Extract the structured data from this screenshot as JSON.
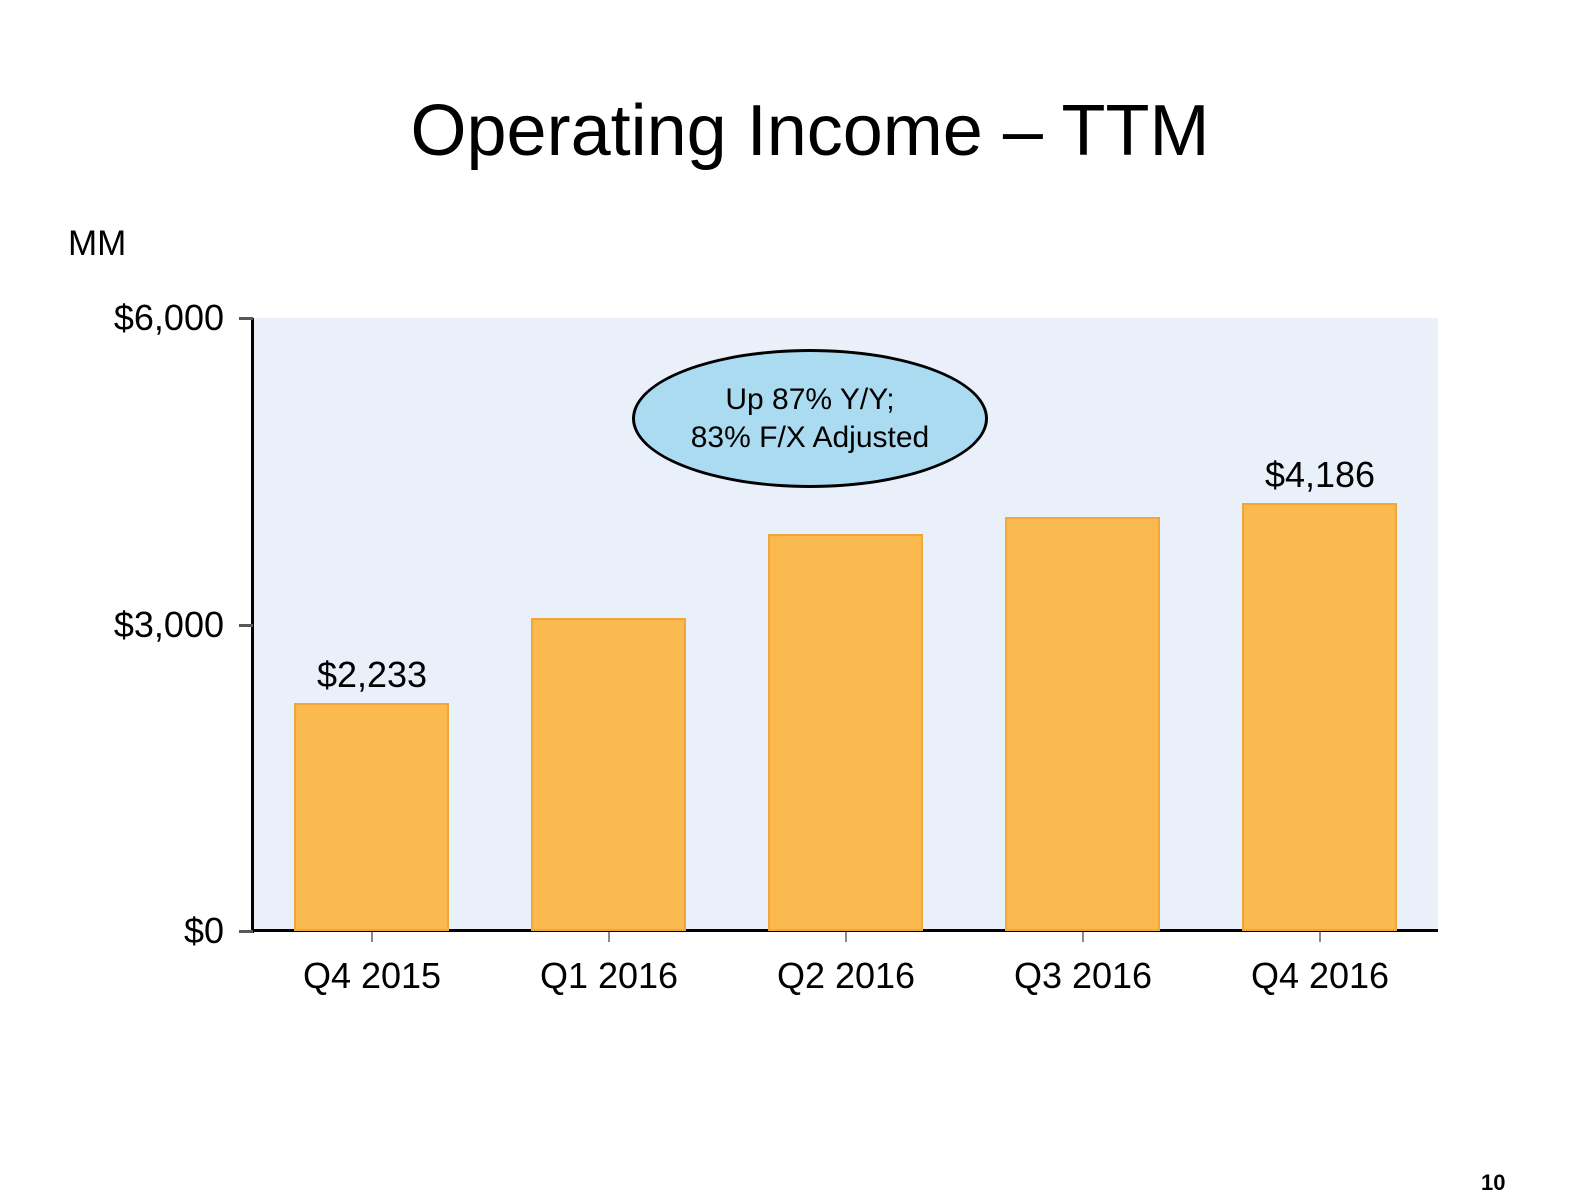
{
  "slide": {
    "title": "Operating Income – TTM",
    "units_label": "MM",
    "page_number": "10"
  },
  "callout": {
    "line1": "Up 87% Y/Y;",
    "line2": "83% F/X Adjusted"
  },
  "colors": {
    "bar_fill": "#FBBA4F",
    "bar_edge": "#F1A63A",
    "plot_background": "#EAF0FA",
    "callout_fill": "#ABDBF0",
    "callout_border": "#000000",
    "axis_line": "#000000",
    "y_tick_color": "#595959",
    "x_tick_color": "#8A8A8A",
    "text_color": "#000000"
  },
  "chart_data": {
    "type": "bar",
    "title": "Operating Income – TTM",
    "units": "MM",
    "categories": [
      "Q4 2015",
      "Q1 2016",
      "Q2 2016",
      "Q3 2016",
      "Q4 2016"
    ],
    "values": [
      2233,
      3067,
      3888,
      4057,
      4186
    ],
    "bar_labels": [
      "$2,233",
      "",
      "",
      "",
      "$4,186"
    ],
    "ylim": [
      0,
      6000
    ],
    "yticks": [
      {
        "value": 0,
        "label": "$0"
      },
      {
        "value": 3000,
        "label": "$3,000"
      },
      {
        "value": 6000,
        "label": "$6,000"
      }
    ],
    "grid": false,
    "legend": false,
    "plot_bg_on": true,
    "annotation": "Up 87% Y/Y; 83% F/X Adjusted"
  }
}
